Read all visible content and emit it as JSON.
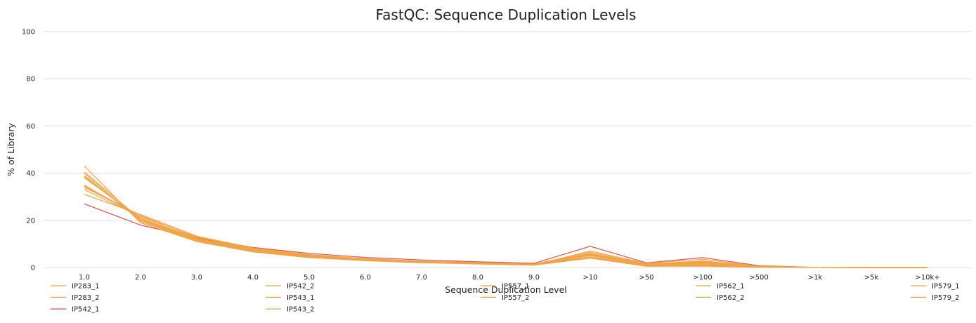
{
  "chart_data": {
    "type": "line",
    "title": "FastQC: Sequence Duplication Levels",
    "xlabel": "Sequence Duplication Level",
    "ylabel": "% of Library",
    "ylim": [
      0,
      100
    ],
    "yticks": [
      0,
      20,
      40,
      60,
      80,
      100
    ],
    "categories": [
      "1.0",
      "2.0",
      "3.0",
      "4.0",
      "5.0",
      "6.0",
      "7.0",
      "8.0",
      "9.0",
      ">10",
      ">50",
      ">100",
      ">500",
      ">1k",
      ">5k",
      ">10k+"
    ],
    "grid": true,
    "legend_position": "bottom",
    "series": [
      {
        "name": "IP283_1",
        "color": "#f0a448",
        "values": [
          38.0,
          21.0,
          12.0,
          7.5,
          4.8,
          3.3,
          2.4,
          1.8,
          1.2,
          5.0,
          1.0,
          1.5,
          0.3,
          0.05,
          0.01,
          0.0
        ]
      },
      {
        "name": "IP283_2",
        "color": "#f0a448",
        "values": [
          34.0,
          22.0,
          12.5,
          7.8,
          5.0,
          3.5,
          2.5,
          1.9,
          1.3,
          5.5,
          1.2,
          2.0,
          0.4,
          0.05,
          0.01,
          0.0
        ]
      },
      {
        "name": "IP542_1",
        "color": "#d9534f",
        "values": [
          27.0,
          18.0,
          12.5,
          8.5,
          6.0,
          4.3,
          3.2,
          2.4,
          1.8,
          9.0,
          2.0,
          4.2,
          0.8,
          0.1,
          0.01,
          0.0
        ]
      },
      {
        "name": "IP542_2",
        "color": "#f0a448",
        "values": [
          40.5,
          20.5,
          12.0,
          7.3,
          4.7,
          3.2,
          2.3,
          1.7,
          1.1,
          4.5,
          0.8,
          1.2,
          0.2,
          0.03,
          0.01,
          0.0
        ]
      },
      {
        "name": "IP543_1",
        "color": "#f0a448",
        "values": [
          33.0,
          21.5,
          13.0,
          8.0,
          5.3,
          3.7,
          2.6,
          2.0,
          1.4,
          6.0,
          1.3,
          2.5,
          0.5,
          0.06,
          0.01,
          0.0
        ]
      },
      {
        "name": "IP543_2",
        "color": "#f0a448",
        "values": [
          31.0,
          22.5,
          13.3,
          8.3,
          5.5,
          3.8,
          2.7,
          2.1,
          1.5,
          6.5,
          1.5,
          2.8,
          0.5,
          0.07,
          0.01,
          0.0
        ]
      },
      {
        "name": "IP557_1",
        "color": "#f0a448",
        "values": [
          39.0,
          20.0,
          11.5,
          7.0,
          4.5,
          3.0,
          2.2,
          1.6,
          1.1,
          4.2,
          0.6,
          0.8,
          0.2,
          0.03,
          0.01,
          0.0
        ]
      },
      {
        "name": "IP557_2",
        "color": "#f0a448",
        "values": [
          35.0,
          21.0,
          12.3,
          7.6,
          4.9,
          3.4,
          2.4,
          1.8,
          1.2,
          5.2,
          1.1,
          1.8,
          0.3,
          0.05,
          0.01,
          0.0
        ]
      },
      {
        "name": "IP562_1",
        "color": "#f0a448",
        "values": [
          40.0,
          19.5,
          11.2,
          6.8,
          4.4,
          3.0,
          2.1,
          1.6,
          1.0,
          4.0,
          0.5,
          0.6,
          0.1,
          0.02,
          0.01,
          0.0
        ]
      },
      {
        "name": "IP562_2",
        "color": "#f0a448",
        "values": [
          38.5,
          20.2,
          11.8,
          7.2,
          4.6,
          3.1,
          2.2,
          1.7,
          1.1,
          4.4,
          0.7,
          1.0,
          0.2,
          0.03,
          0.01,
          0.0
        ]
      },
      {
        "name": "IP579_1",
        "color": "#f0a448",
        "values": [
          43.0,
          19.0,
          11.0,
          6.6,
          4.2,
          2.9,
          2.0,
          1.5,
          1.0,
          7.0,
          1.8,
          3.5,
          0.6,
          0.08,
          0.01,
          0.0
        ]
      },
      {
        "name": "IP579_2",
        "color": "#f0a448",
        "values": [
          34.5,
          22.0,
          12.8,
          8.0,
          5.2,
          3.6,
          2.6,
          2.0,
          1.4,
          5.8,
          1.3,
          2.2,
          0.4,
          0.06,
          0.01,
          0.0
        ]
      }
    ]
  }
}
